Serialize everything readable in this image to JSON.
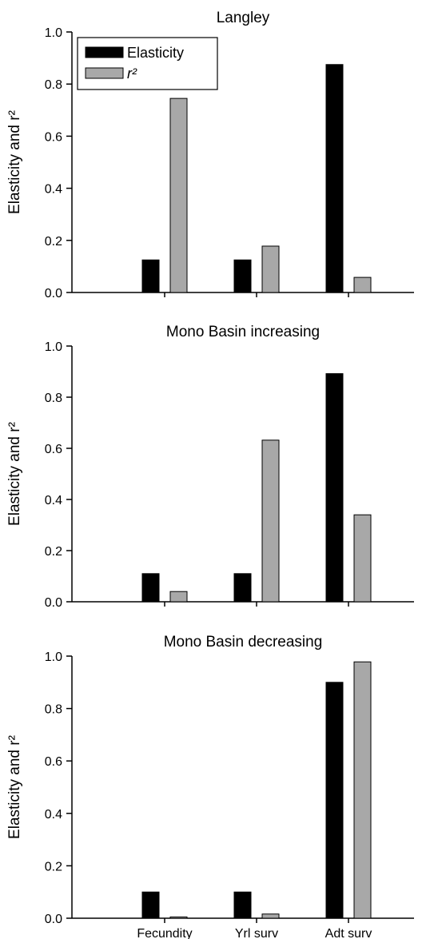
{
  "chart_data": [
    {
      "type": "bar",
      "title": "Langley",
      "ylabel": "Elasticity and r²",
      "ylim": [
        0,
        1.0
      ],
      "yticks": [
        0.0,
        0.2,
        0.4,
        0.6,
        0.8,
        1.0
      ],
      "categories": [
        "Fecundity",
        "Yrl surv",
        "Adt surv"
      ],
      "series": [
        {
          "name": "Elasticity",
          "color": "#000000",
          "values": [
            0.125,
            0.125,
            0.875
          ]
        },
        {
          "name": "r²",
          "color": "#a8a8a8",
          "values": [
            0.745,
            0.178,
            0.058
          ]
        }
      ],
      "legend": "top-left",
      "grid": false
    },
    {
      "type": "bar",
      "title": "Mono Basin increasing",
      "ylabel": "Elasticity and r²",
      "ylim": [
        0,
        1.0
      ],
      "yticks": [
        0.0,
        0.2,
        0.4,
        0.6,
        0.8,
        1.0
      ],
      "categories": [
        "Fecundity",
        "Yrl surv",
        "Adt surv"
      ],
      "series": [
        {
          "name": "Elasticity",
          "color": "#000000",
          "values": [
            0.11,
            0.11,
            0.892
          ]
        },
        {
          "name": "r²",
          "color": "#a8a8a8",
          "values": [
            0.04,
            0.632,
            0.34
          ]
        }
      ],
      "grid": false
    },
    {
      "type": "bar",
      "title": "Mono Basin decreasing",
      "ylabel": "Elasticity and r²",
      "ylim": [
        0,
        1.0
      ],
      "yticks": [
        0.0,
        0.2,
        0.4,
        0.6,
        0.8,
        1.0
      ],
      "categories": [
        "Fecundity",
        "Yrl surv",
        "Adt surv"
      ],
      "series": [
        {
          "name": "Elasticity",
          "color": "#000000",
          "values": [
            0.1,
            0.1,
            0.9
          ]
        },
        {
          "name": "r²",
          "color": "#a8a8a8",
          "values": [
            0.005,
            0.016,
            0.978
          ]
        }
      ],
      "grid": false
    }
  ]
}
